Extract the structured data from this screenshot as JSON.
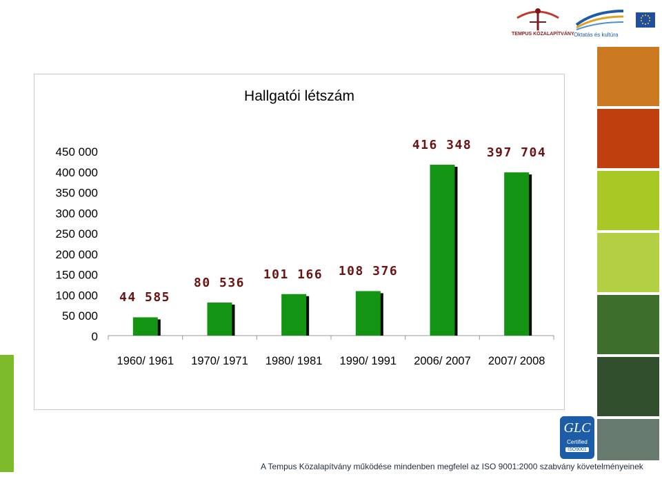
{
  "logos": {
    "tempus_text": "TEMPUS KÖZALAPÍTVÁNY",
    "oktatas_text": "Oktatás és kultúra"
  },
  "badge": {
    "line1": "GLC",
    "line2": "Certified",
    "line3": "ISO9001"
  },
  "footer": {
    "text": "A Tempus Közalapítvány működése mindenben megfelel az ISO 9001:2000 szabvány követelményeinek"
  },
  "colors": {
    "bar": "#139413",
    "bar_shadow": "#0a0a0a",
    "value_label": "#6b1212",
    "stripes": [
      "#cc7a21",
      "#bf3f0e",
      "#a8c826",
      "#b3cf43",
      "#3d6e2c",
      "#314f2c",
      "#677a6e"
    ]
  },
  "chart_data": {
    "type": "bar",
    "title": "Hallgatói létszám",
    "categories": [
      "1960/ 1961",
      "1970/ 1971",
      "1980/ 1981",
      "1990/ 1991",
      "2006/ 2007",
      "2007/ 2008"
    ],
    "values": [
      44585,
      80536,
      101166,
      108376,
      416348,
      397704
    ],
    "value_labels": [
      "44 585",
      "80 536",
      "101 166",
      "108 376",
      "416 348",
      "397 704"
    ],
    "ylim": [
      0,
      450000
    ],
    "yticks": [
      0,
      50000,
      100000,
      150000,
      200000,
      250000,
      300000,
      350000,
      400000,
      450000
    ],
    "ytick_labels": [
      "0",
      "50 000",
      "100 000",
      "150 000",
      "200 000",
      "250 000",
      "300 000",
      "350 000",
      "400 000",
      "450 000"
    ],
    "grid": false,
    "legend": "none"
  }
}
